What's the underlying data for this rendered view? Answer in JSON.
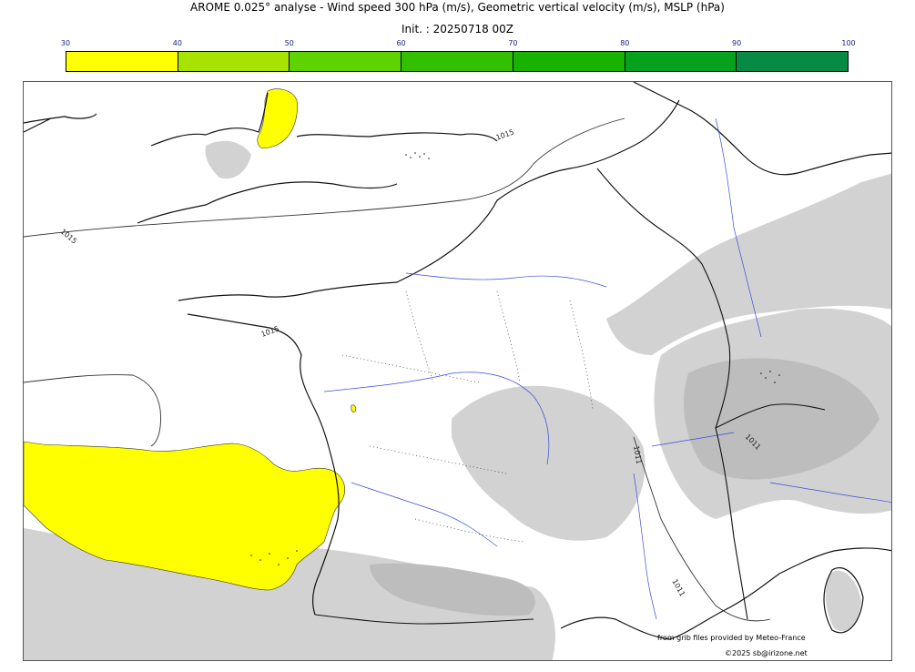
{
  "header": {
    "title": "AROME 0.025° analyse - Wind speed 300 hPa (m/s), Geometric vertical velocity (m/s), MSLP (hPa)",
    "init": "Init. : 20250718 00Z"
  },
  "colorbar": {
    "ticks": [
      "30",
      "40",
      "50",
      "60",
      "70",
      "80",
      "90",
      "100"
    ],
    "colors": [
      "#ffff00",
      "#a6e400",
      "#5fd300",
      "#32c000",
      "#17b300",
      "#06a21e",
      "#078b44",
      "#0b7450"
    ]
  },
  "map": {
    "isobars": [
      "1015",
      "1015",
      "1015",
      "1011",
      "1011",
      "1011"
    ],
    "colors": {
      "coast": "#111111",
      "rivers": "#3b4bd8",
      "terrain": "#d0d0d0",
      "terrain_dark": "#bdbdbd",
      "wind_30_40": "#ffff00"
    }
  },
  "footer": {
    "source": "from grib files provided by Meteo-France",
    "copyright": "©2025 sb@irizone.net"
  }
}
